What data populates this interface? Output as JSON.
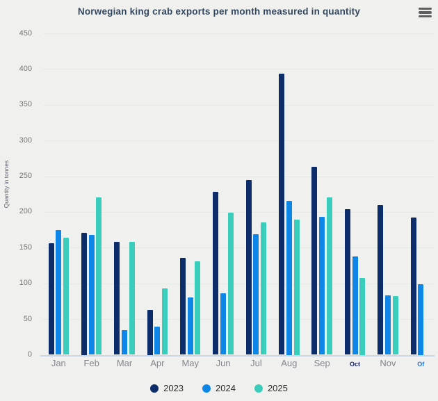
{
  "title": "Norwegian king crab exports per month measured in quantity",
  "icons": {
    "menu": "hamburger-icon"
  },
  "chart_data": {
    "type": "bar",
    "title": "Norwegian king crab exports per month measured in quantity",
    "xlabel": "",
    "ylabel": "Quantity in tonnes",
    "ylim": [
      0,
      450
    ],
    "ytick_step": 50,
    "yticks": [
      0,
      50,
      100,
      150,
      200,
      250,
      300,
      350,
      400,
      450
    ],
    "grid": true,
    "legend_position": "bottom",
    "categories": [
      "Jan",
      "Feb",
      "Mar",
      "Apr",
      "May",
      "Jun",
      "Jul",
      "Aug",
      "Sep",
      "Oct",
      "Nov",
      "Of"
    ],
    "category_variants": [
      "normal",
      "normal",
      "normal",
      "normal",
      "normal",
      "normal",
      "normal",
      "normal",
      "normal",
      "small-navy",
      "normal",
      "small-blue"
    ],
    "series": [
      {
        "name": "2023",
        "color": "#0d2c6a",
        "values": [
          156,
          171,
          158,
          63,
          136,
          228,
          245,
          394,
          263,
          204,
          210,
          192
        ]
      },
      {
        "name": "2024",
        "color": "#0e86e8",
        "values": [
          175,
          168,
          35,
          39,
          80,
          86,
          169,
          216,
          193,
          138,
          83,
          99
        ]
      },
      {
        "name": "2025",
        "color": "#3bcdbb",
        "values": [
          164,
          220,
          158,
          93,
          131,
          199,
          185,
          189,
          220,
          108,
          82,
          null
        ]
      }
    ]
  }
}
